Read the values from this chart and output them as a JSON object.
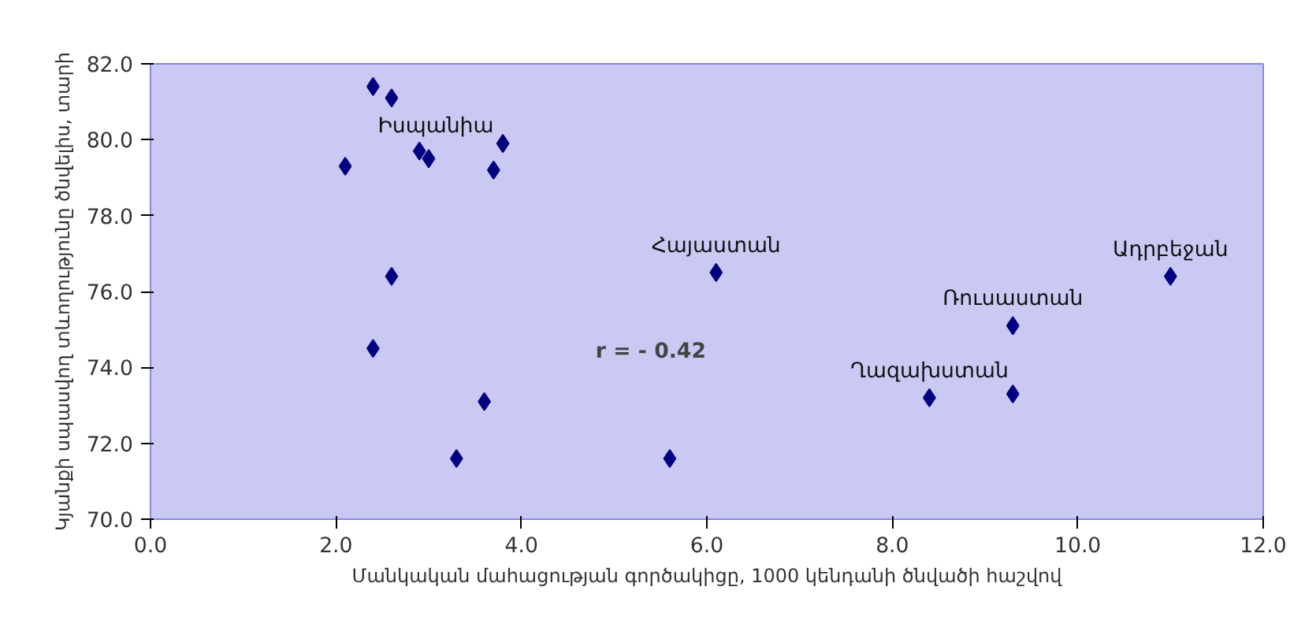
{
  "chart_data": {
    "type": "scatter",
    "xlabel": "Մանկական մահացության գործակիցը, 1000 կենդանի ծնվածի հաշվով",
    "ylabel": "Կյանքի սպասվող տևողությունը ծնվելիս, տարի",
    "x": [
      2.4,
      2.6,
      2.1,
      2.9,
      3.0,
      3.8,
      3.7,
      2.6,
      2.4,
      3.6,
      3.3,
      5.6,
      6.1,
      8.4,
      9.3,
      9.3,
      11.0
    ],
    "series": [
      {
        "color": "#000080",
        "values": [
          81.4,
          81.1,
          79.3,
          79.7,
          79.5,
          79.9,
          79.2,
          76.4,
          74.5,
          73.1,
          71.6,
          71.6,
          76.5,
          73.2,
          73.3,
          75.1,
          76.4
        ]
      }
    ],
    "xlim": [
      0,
      12
    ],
    "ylim": [
      70,
      82
    ],
    "xticks": [
      {
        "value": 0,
        "label": "0.0"
      },
      {
        "value": 2,
        "label": "2.0"
      },
      {
        "value": 4,
        "label": "4.0"
      },
      {
        "value": 6,
        "label": "6.0"
      },
      {
        "value": 8,
        "label": "8.0"
      },
      {
        "value": 10,
        "label": "10.0"
      },
      {
        "value": 12,
        "label": "12.0"
      }
    ],
    "yticks": [
      {
        "value": 70,
        "label": "70.0"
      },
      {
        "value": 72,
        "label": "72.0"
      },
      {
        "value": 74,
        "label": "74.0"
      },
      {
        "value": 76,
        "label": "76.0"
      },
      {
        "value": 78,
        "label": "78.0"
      },
      {
        "value": 80,
        "label": "80.0"
      },
      {
        "value": 82,
        "label": "82.0"
      }
    ],
    "marker": "diamond",
    "grid": false,
    "annotations": [
      {
        "text": "Իսպանիա",
        "x": 2.6,
        "y": 81.1
      },
      {
        "text": "Հայաստան",
        "x": 6.1,
        "y": 76.5
      },
      {
        "text": "Ադրբեջան",
        "x": 11.0,
        "y": 76.4
      },
      {
        "text": "Ռուսաստան",
        "x": 9.3,
        "y": 75.1
      },
      {
        "text": "Ղազախստան",
        "x": 8.4,
        "y": 73.2
      },
      "r = - 0.42"
    ]
  }
}
